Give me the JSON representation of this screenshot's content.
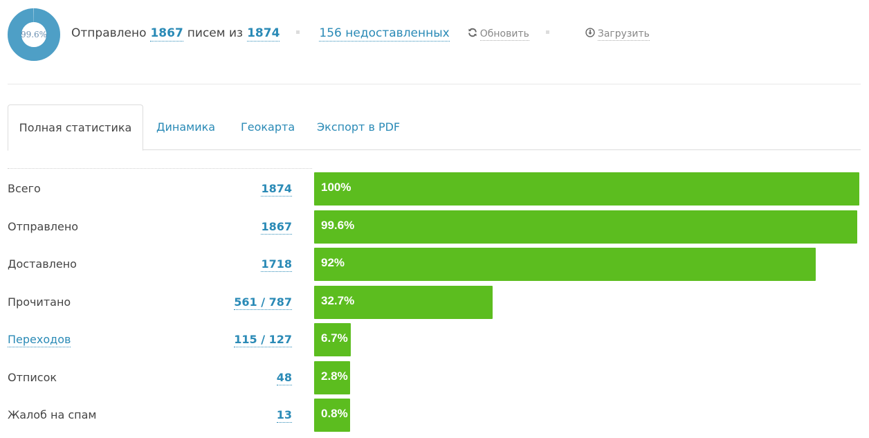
{
  "header": {
    "progress_percent": 99.6,
    "progress_label": "99.6%",
    "colors": {
      "donut": "#4e9fc6",
      "donut_track": "#d8e8f1"
    },
    "summary": {
      "sent_prefix": "Отправлено",
      "sent_count": "1867",
      "sent_middle": "писем из",
      "total_count": "1874",
      "undelivered_link": "156 недоставленных"
    },
    "refresh": {
      "icon": "refresh-icon",
      "label": "Обновить"
    },
    "download": {
      "icon": "download-circle-icon",
      "label": "Загрузить"
    }
  },
  "tabs": [
    {
      "label": "Полная статистика",
      "active": true
    },
    {
      "label": "Динамика",
      "active": false
    },
    {
      "label": "Геокарта",
      "active": false
    },
    {
      "label": "Экспорт в PDF",
      "active": false
    }
  ],
  "stats": {
    "bar_color": "#5cbd1f",
    "rows": [
      {
        "label": "Всего",
        "value": "1874",
        "percent": 100,
        "percent_label": "100%",
        "label_is_link": false
      },
      {
        "label": "Отправлено",
        "value": "1867",
        "percent": 99.6,
        "percent_label": "99.6%",
        "label_is_link": false
      },
      {
        "label": "Доставлено",
        "value": "1718",
        "percent": 92,
        "percent_label": "92%",
        "label_is_link": false
      },
      {
        "label": "Прочитано",
        "value": "561 / 787",
        "percent": 32.7,
        "percent_label": "32.7%",
        "label_is_link": false
      },
      {
        "label": "Переходов",
        "value": "115 / 127",
        "percent": 6.7,
        "percent_label": "6.7%",
        "label_is_link": true
      },
      {
        "label": "Отписок",
        "value": "48",
        "percent": 2.8,
        "percent_label": "2.8%",
        "label_is_link": false
      },
      {
        "label": "Жалоб на спам",
        "value": "13",
        "percent": 0.8,
        "percent_label": "0.8%",
        "label_is_link": false
      }
    ]
  }
}
